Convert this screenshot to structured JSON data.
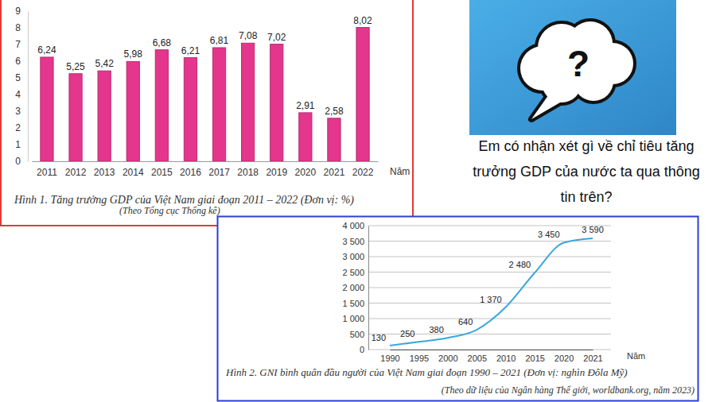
{
  "chart_data": [
    {
      "type": "bar",
      "title": "Hình 1. Tăng trưởng GDP của Việt Nam giai đoạn 2011 – 2022 (Đơn vị: %)",
      "source": "(Theo Tổng cục Thống kê)",
      "x_label": "Năm",
      "categories": [
        "2011",
        "2012",
        "2013",
        "2014",
        "2015",
        "2016",
        "2017",
        "2018",
        "2019",
        "2020",
        "2021",
        "2022"
      ],
      "values": [
        6.24,
        5.25,
        5.42,
        5.98,
        6.68,
        6.21,
        6.81,
        7.08,
        7.02,
        2.91,
        2.58,
        8.02
      ],
      "value_labels": [
        "6,24",
        "5,25",
        "5,42",
        "5,98",
        "6,68",
        "6,21",
        "6,81",
        "7,08",
        "7,02",
        "2,91",
        "2,58",
        "8,02"
      ],
      "color": "#e4368c",
      "ylim": [
        0,
        9
      ],
      "yticks": [
        0,
        1,
        2,
        3,
        4,
        5,
        6,
        7,
        8,
        9
      ],
      "grid": false,
      "data_labels": true
    },
    {
      "type": "line",
      "title": "Hình 2. GNI bình quân đầu người của Việt Nam giai đoạn 1990 – 2021 (Đơn vị: nghìn Đôla Mỹ)",
      "source": "(Theo dữ liệu của Ngân hàng Thế giới, worldbank.org, năm 2023)",
      "x_label": "Năm",
      "categories": [
        "1990",
        "1995",
        "2000",
        "2005",
        "2010",
        "2015",
        "2020",
        "2021"
      ],
      "values": [
        130,
        250,
        380,
        640,
        1370,
        2480,
        3450,
        3590
      ],
      "value_labels": [
        "130",
        "250",
        "380",
        "640",
        "1 370",
        "2 480",
        "3 450",
        "3 590"
      ],
      "color": "#3ba7dc",
      "ylim": [
        0,
        4000
      ],
      "yticks": [
        0,
        500,
        {
          "value": 1000,
          "label": "1 000"
        },
        {
          "value": 1500,
          "label": "1 500"
        },
        {
          "value": 2000,
          "label": "2 000"
        },
        {
          "value": 2500,
          "label": "2 500"
        },
        {
          "value": 3000,
          "label": "3 000"
        },
        {
          "value": 3500,
          "label": "3 500"
        },
        {
          "value": 4000,
          "label": "4 000"
        }
      ],
      "grid": true,
      "data_labels": true
    }
  ],
  "question": {
    "icon": "?",
    "lines": [
      "Em có nhận xét gì về chỉ tiêu tăng",
      "trưởng GDP của nước ta qua thông",
      "tin trên?"
    ]
  }
}
